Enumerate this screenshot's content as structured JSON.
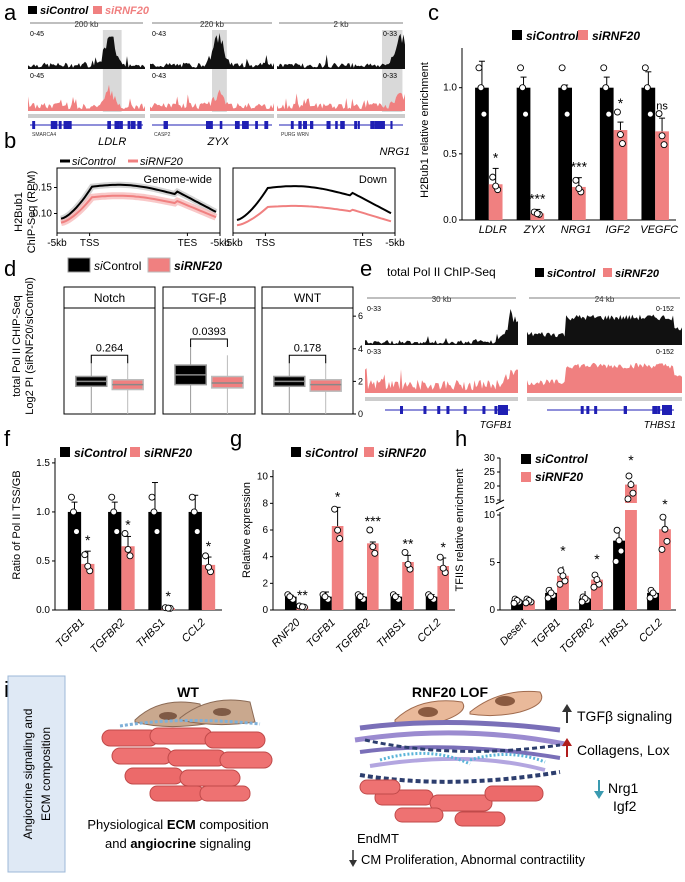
{
  "colors": {
    "control": "#000000",
    "rnf20": "#f08080",
    "rnf20_light": "#f7b1b1",
    "highlight": "#d9d9d9",
    "gene_blue": "#1f1fb4",
    "box_bg": "#dfe9f5"
  },
  "panel_letters": {
    "a": "a",
    "b": "b",
    "c": "c",
    "d": "d",
    "e": "e",
    "f": "f",
    "g": "g",
    "h": "h",
    "i": "i"
  },
  "legend": {
    "sicontrol": "siControl",
    "sirnf20": "siRNF20"
  },
  "panel_a": {
    "tracks": [
      {
        "scale": "200 kb",
        "ctrl_range": "0-45",
        "rnf_range": "0-45",
        "gene": "LDLR",
        "small_genes": [
          "SMARCA4"
        ]
      },
      {
        "scale": "220 kb",
        "ctrl_range": "0-43",
        "rnf_range": "0-43",
        "gene": "ZYX",
        "small_genes": [
          "CASP2"
        ]
      },
      {
        "scale": "2 kb",
        "ctrl_range": "0-33",
        "rnf_range": "0-33",
        "gene": "NRG1",
        "small_genes": [
          "PURG WRN"
        ]
      }
    ]
  },
  "panel_b": {
    "ylabel_line1": "H2Bub1",
    "ylabel_line2": "ChIP-Seq (RPM)",
    "plots": [
      {
        "title": "Genome-wide"
      },
      {
        "title": "Down"
      }
    ],
    "yticks": [
      "0.15",
      "0.10"
    ],
    "xticks": [
      "-5kb",
      "TSS",
      "TES",
      "-5kb"
    ]
  },
  "panel_c": {
    "ylabel": "H2Bub1 relative enrichment",
    "chart_data": {
      "type": "bar",
      "categories": [
        "LDLR",
        "ZYX",
        "NRG1",
        "IGF2",
        "VEGFC"
      ],
      "series": [
        {
          "name": "siControl",
          "values": [
            1.0,
            1.0,
            1.0,
            1.0,
            1.0
          ]
        },
        {
          "name": "siRNF20",
          "values": [
            0.27,
            0.05,
            0.25,
            0.68,
            0.67
          ]
        }
      ],
      "errors_ctrl": [
        0.2,
        0.08,
        0.02,
        0.08,
        0.12
      ],
      "errors_rnf": [
        0.12,
        0.03,
        0.07,
        0.06,
        0.1
      ],
      "significance": [
        "*",
        "***",
        "***",
        "*",
        "ns"
      ],
      "ylim": [
        0,
        1.3
      ],
      "yticks": [
        "0.0",
        "0.5",
        "1.0"
      ]
    }
  },
  "panel_d": {
    "ylabel_line1": "total Pol II CHIP-Seq",
    "ylabel_line2": "Log2 PI (siRNF20/siControl)",
    "chart_data": {
      "type": "box",
      "groups": [
        {
          "title": "Notch",
          "pvalue": "0.264",
          "ctrl": {
            "q1": 1.7,
            "median": 2.0,
            "q3": 2.3
          },
          "rnf": {
            "q1": 1.5,
            "median": 1.8,
            "q3": 2.1
          }
        },
        {
          "title": "TGF-β",
          "pvalue": "0.0393",
          "ctrl": {
            "q1": 1.8,
            "median": 2.4,
            "q3": 3.0
          },
          "rnf": {
            "q1": 1.6,
            "median": 1.9,
            "q3": 2.3
          }
        },
        {
          "title": "WNT",
          "pvalue": "0.178",
          "ctrl": {
            "q1": 1.7,
            "median": 2.0,
            "q3": 2.3
          },
          "rnf": {
            "q1": 1.4,
            "median": 1.8,
            "q3": 2.1
          }
        }
      ],
      "ylim": [
        0,
        6.5
      ],
      "yticks": [
        "0",
        "2",
        "4",
        "6"
      ]
    }
  },
  "panel_e": {
    "title": "total Pol II  ChIP-Seq",
    "tracks": [
      {
        "scale": "30 kb",
        "ctrl_range": "0-33",
        "rnf_range": "0-33",
        "gene": "TGFB1"
      },
      {
        "scale": "24 kb",
        "ctrl_range": "0-152",
        "rnf_range": "0-152",
        "gene": "THBS1"
      }
    ]
  },
  "panel_f": {
    "ylabel": "Ratio of Pol II TSS/GB",
    "chart_data": {
      "type": "bar",
      "categories": [
        "TGFB1",
        "TGFBR2",
        "THBS1",
        "CCL2"
      ],
      "series": [
        {
          "name": "siControl",
          "values": [
            1.0,
            1.0,
            1.0,
            1.0
          ]
        },
        {
          "name": "siRNF20",
          "values": [
            0.47,
            0.65,
            0.02,
            0.46
          ]
        }
      ],
      "errors_ctrl": [
        0.1,
        0.1,
        0.3,
        0.17
      ],
      "errors_rnf": [
        0.13,
        0.1,
        0.01,
        0.08
      ],
      "significance": [
        "*",
        "*",
        "*",
        "*"
      ],
      "ylim": [
        0,
        1.55
      ],
      "yticks": [
        "0.0",
        "0.5",
        "1.0",
        "1.5"
      ]
    }
  },
  "panel_g": {
    "ylabel": "Relative expression",
    "chart_data": {
      "type": "bar",
      "categories": [
        "RNF20",
        "TGFB1",
        "TGFBR2",
        "THBS1",
        "CCL2"
      ],
      "series": [
        {
          "name": "siControl",
          "values": [
            1.0,
            1.0,
            1.0,
            1.0,
            1.0
          ]
        },
        {
          "name": "siRNF20",
          "values": [
            0.25,
            6.3,
            5.0,
            3.6,
            3.3
          ]
        }
      ],
      "errors_ctrl": [
        0.1,
        0.35,
        0.2,
        0.15,
        0.15
      ],
      "errors_rnf": [
        0.05,
        1.4,
        0.1,
        0.5,
        0.6
      ],
      "significance": [
        "**",
        "*",
        "***",
        "**",
        "*"
      ],
      "ylim": [
        0,
        10.5
      ],
      "yticks": [
        "0",
        "2",
        "4",
        "6",
        "8",
        "10"
      ]
    }
  },
  "panel_h": {
    "ylabel": "TFIIS relative enrichment",
    "chart_data": {
      "type": "bar",
      "categories": [
        "Desert",
        "TGFB1",
        "TGFBR2",
        "THBS1",
        "CCL2"
      ],
      "series": [
        {
          "name": "siControl",
          "values": [
            1.0,
            1.8,
            1.2,
            7.3,
            1.8
          ]
        },
        {
          "name": "siRNF20",
          "values": [
            1.0,
            3.6,
            3.2,
            20.5,
            8.5
          ]
        }
      ],
      "errors_ctrl": [
        0.05,
        0.6,
        0.8,
        1.2,
        0.2
      ],
      "errors_rnf": [
        0.05,
        1.0,
        0.6,
        1.5,
        2.0
      ],
      "significance": [
        "",
        "*",
        "*",
        "*",
        "*"
      ],
      "yticks_lower": [
        "0",
        "5",
        "10"
      ],
      "yticks_upper": [
        "15",
        "20",
        "25",
        "30"
      ]
    }
  },
  "panel_i": {
    "side_label_line1": "Angiocrine signaling and",
    "side_label_line2": "ECM composition",
    "wt_title": "WT",
    "lof_title": "RNF20 LOF",
    "wt_caption_1a": "Physiological ",
    "wt_caption_1b": "ECM",
    "wt_caption_1c": " composition",
    "wt_caption_2a": "and ",
    "wt_caption_2b": "angiocrine",
    "wt_caption_2c": " signaling",
    "up1": "TGFβ signaling",
    "up2": "Collagens, Lox",
    "down1": "Nrg1",
    "down2": "Igf2",
    "endmt": "EndMT",
    "cm_line": "CM Proliferation, Abnormal contractility"
  }
}
